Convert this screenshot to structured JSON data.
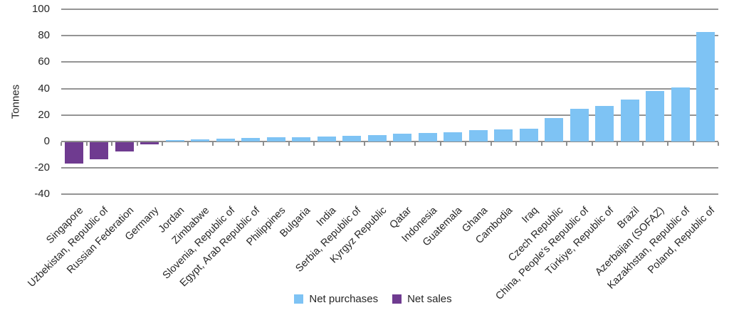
{
  "chart_data": {
    "type": "bar",
    "title": "",
    "ylabel": "Tonnes",
    "xlabel": "",
    "ylim": [
      -40,
      100
    ],
    "yticks": [
      100,
      80,
      60,
      40,
      20,
      0,
      -20,
      -40
    ],
    "grid": true,
    "legend_position": "bottom-center",
    "x_tick_rotation_deg": 45,
    "categories": [
      "Singapore",
      "Uzbekistan, Republic of",
      "Russian Federation",
      "Germany",
      "Jordan",
      "Zimbabwe",
      "Slovenia, Republic of",
      "Egypt, Arab Republic of",
      "Philippines",
      "Bulgaria",
      "India",
      "Serbia, Republic of",
      "Kyrgyz Republic",
      "Qatar",
      "Indonesia",
      "Guatemala",
      "Ghana",
      "Cambodia",
      "Iraq",
      "Czech Republic",
      "China, People's Republic of",
      "Türkiye, Republic of",
      "Brazil",
      "Azerbaijan (SOFAZ)",
      "Kazakhstan, Republic of",
      "Poland, Republic of"
    ],
    "values": [
      -16,
      -13,
      -7,
      -1.5,
      1,
      1.5,
      2,
      2.5,
      3,
      3.5,
      4,
      4.5,
      5,
      6,
      6.5,
      7,
      8.5,
      9,
      9.5,
      18,
      25,
      27,
      32,
      38,
      41,
      83
    ],
    "series_rule": "positive values = Net purchases (blue), negative values = Net sales (purple)",
    "legend": [
      {
        "label": "Net purchases",
        "color": "#7EC3F4"
      },
      {
        "label": "Net sales",
        "color": "#6F3B90"
      }
    ],
    "colors": {
      "net_purchases": "#7EC3F4",
      "net_sales": "#6F3B90",
      "gridline": "#949494",
      "axis_text": "#262626",
      "background": "#FFFFFF"
    }
  }
}
